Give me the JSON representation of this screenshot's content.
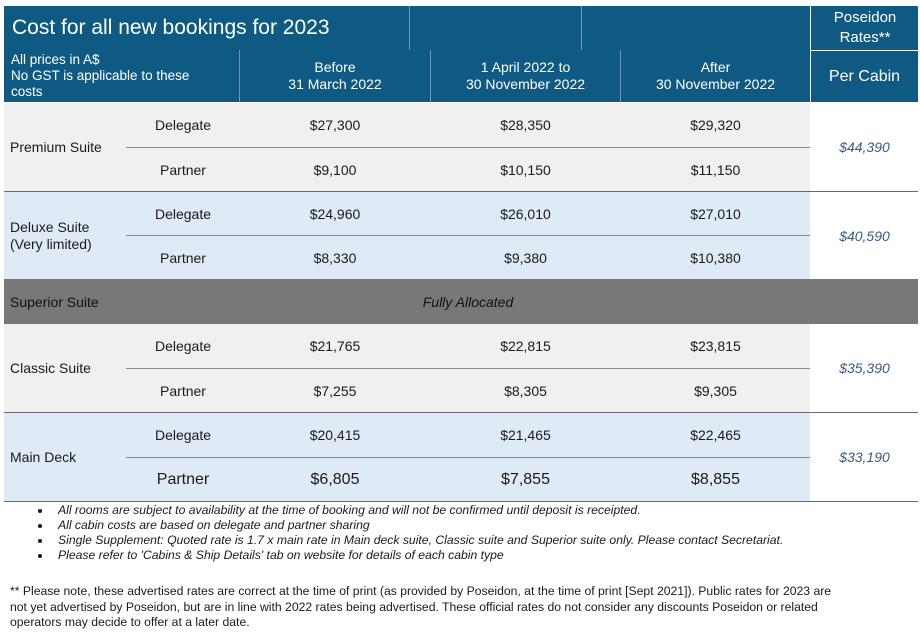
{
  "header": {
    "title": "Cost for all new bookings for 2023",
    "poseidon_label": "Poseidon Rates**",
    "price_note_line1": "All prices in A$",
    "price_note_line2": "No GST is applicable to these",
    "price_note_line3": "costs",
    "col1_line1": "Before",
    "col1_line2": "31 March 2022",
    "col2_line1": "1 April 2022 to",
    "col2_line2": "30 November 2022",
    "col3_line1": "After",
    "col3_line2": "30 November 2022",
    "per_cabin": "Per Cabin"
  },
  "rows": {
    "premium": {
      "name": "Premium Suite",
      "delegate_label": "Delegate",
      "partner_label": "Partner",
      "delegate": [
        "$27,300",
        "$28,350",
        "$29,320"
      ],
      "partner": [
        "$9,100",
        "$10,150",
        "$11,150"
      ],
      "poseidon": "$44,390"
    },
    "deluxe": {
      "name_line1": "Deluxe Suite",
      "name_line2": "(Very limited)",
      "delegate_label": "Delegate",
      "partner_label": "Partner",
      "delegate": [
        "$24,960",
        "$26,010",
        "$27,010"
      ],
      "partner": [
        "$8,330",
        "$9,380",
        "$10,380"
      ],
      "poseidon": "$40,590"
    },
    "superior": {
      "name": "Superior Suite",
      "status": "Fully Allocated"
    },
    "classic": {
      "name": "Classic Suite",
      "delegate_label": "Delegate",
      "partner_label": "Partner",
      "delegate": [
        "$21,765",
        "$22,815",
        "$23,815"
      ],
      "partner": [
        "$7,255",
        "$8,305",
        "$9,305"
      ],
      "poseidon": "$35,390"
    },
    "main": {
      "name": "Main Deck",
      "delegate_label": "Delegate",
      "partner_label": "Partner",
      "delegate": [
        "$20,415",
        "$21,465",
        "$22,465"
      ],
      "partner": [
        "$6,805",
        "$7,855",
        "$8,855"
      ],
      "poseidon": "$33,190"
    }
  },
  "notes": [
    "All rooms are subject to availability at the time of booking and will not be confirmed until deposit is receipted.",
    "All cabin costs are based on delegate and partner sharing",
    "Single Supplement:  Quoted rate is 1.7 x main rate in Main deck suite, Classic suite and Superior suite only. Please contact Secretariat.",
    "Please refer to 'Cabins & Ship Details' tab on website for details of each cabin type"
  ],
  "footnote_line1": "** Please note, these advertised rates are correct at the time of print (as provided by Poseidon, at the time of print [Sept 2021]).  Public rates for 2023 are",
  "footnote_line2": "not yet advertised by Poseidon, but are in line with 2022 rates being advertised.  These official rates do not consider any discounts Poseidon or related",
  "footnote_line3": "operators may decide to offer at a later date."
}
